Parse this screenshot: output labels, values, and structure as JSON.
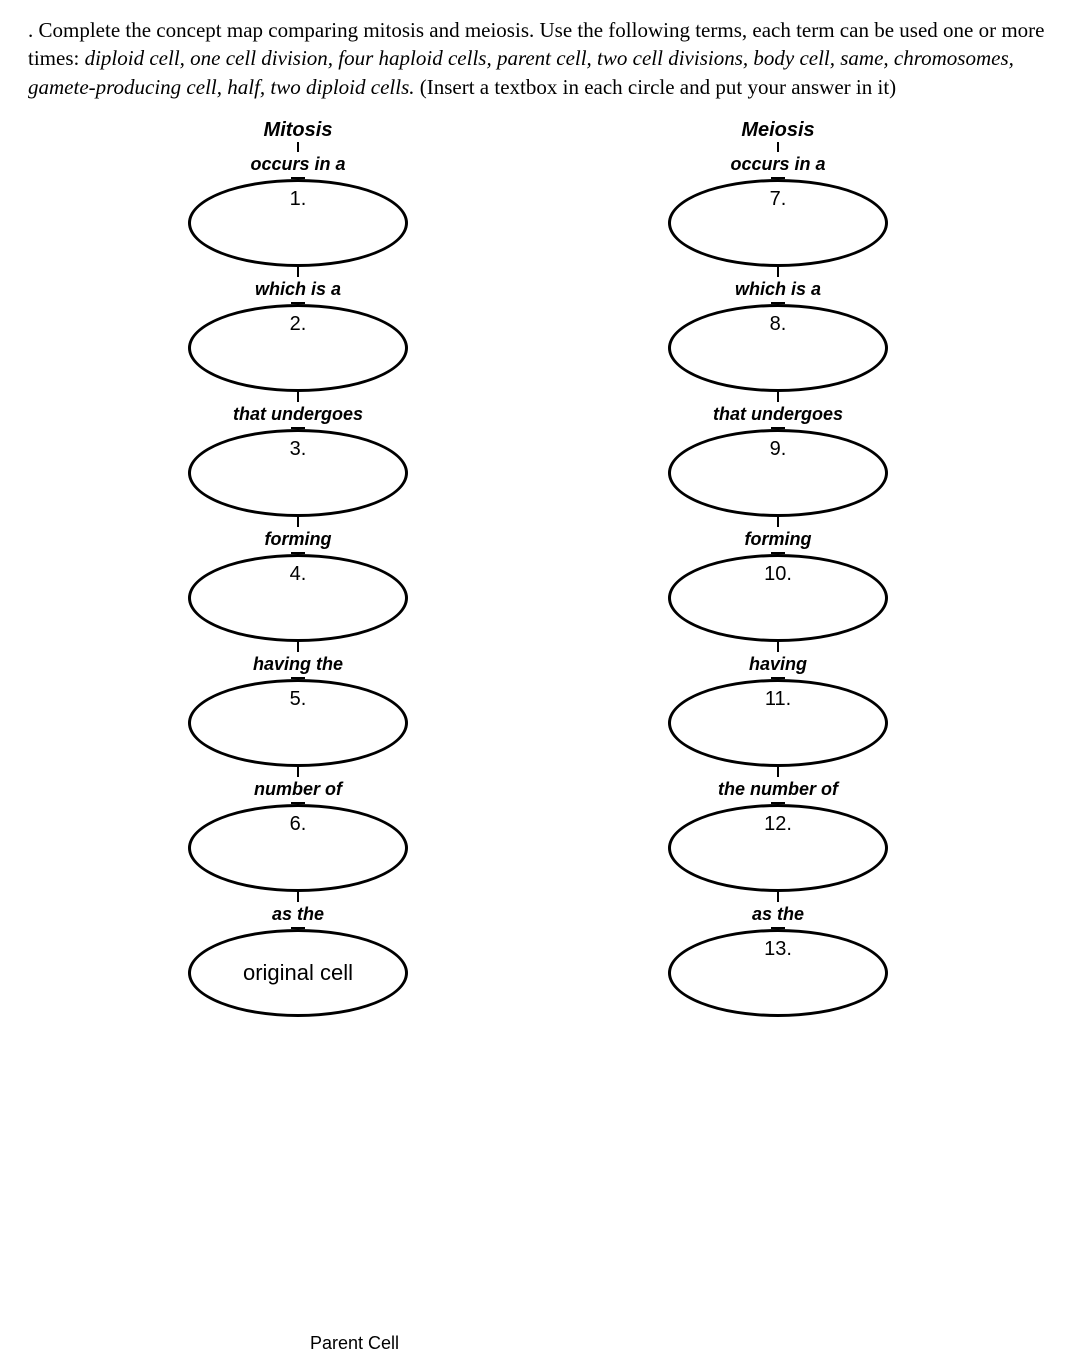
{
  "instructions": {
    "line1": ". Complete the concept map comparing mitosis and meiosis. Use the following terms, each term can be used one or more times: ",
    "terms": "diploid cell, one cell division, four haploid cells, parent cell, two cell divisions, body cell, same, chromosomes, gamete-producing cell, half, two diploid cells.",
    "line2": " (Insert a textbox in each circle and put your answer in it)"
  },
  "mitosis": {
    "title": "Mitosis",
    "steps": [
      {
        "connector": "occurs in a",
        "bubble": "1."
      },
      {
        "connector": "which is a",
        "bubble": "2."
      },
      {
        "connector": "that undergoes",
        "bubble": "3."
      },
      {
        "connector": "forming",
        "bubble": "4."
      },
      {
        "connector": "having the",
        "bubble": "5."
      },
      {
        "connector": "number of",
        "bubble": "6."
      },
      {
        "connector": "as the",
        "bubble": "original cell"
      }
    ]
  },
  "meiosis": {
    "title": "Meiosis",
    "steps": [
      {
        "connector": "occurs in a",
        "bubble": "7."
      },
      {
        "connector": "which is a",
        "bubble": "8."
      },
      {
        "connector": "that undergoes",
        "bubble": "9."
      },
      {
        "connector": "forming",
        "bubble": "10."
      },
      {
        "connector": "having",
        "bubble": "11."
      },
      {
        "connector": "the number of",
        "bubble": "12."
      },
      {
        "connector": "as the",
        "bubble": "13."
      }
    ]
  },
  "footer_label": "Parent Cell"
}
